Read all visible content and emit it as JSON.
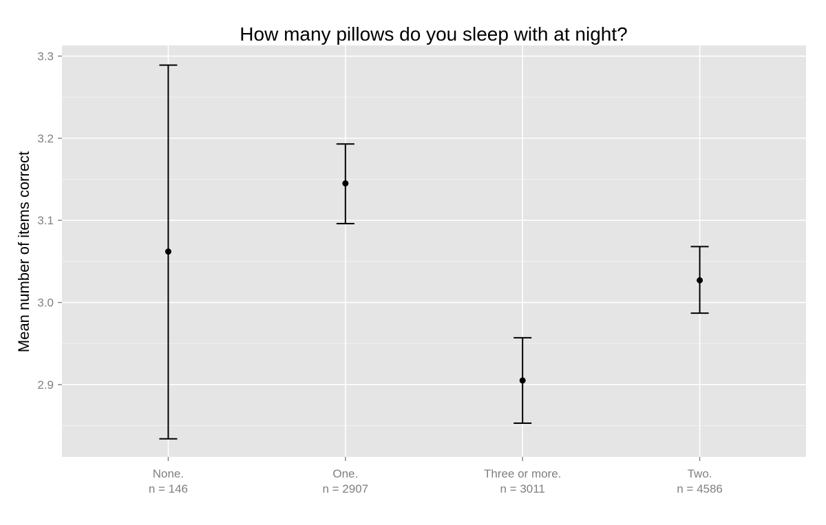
{
  "chart_data": {
    "type": "errorbar",
    "title": "How many pillows do you sleep with at night?",
    "xlabel": "",
    "ylabel": "Mean number of items correct",
    "ylim": [
      2.812,
      3.313
    ],
    "yticks": [
      2.9,
      3.0,
      3.1,
      3.2,
      3.3
    ],
    "ytick_labels": [
      "2.9",
      "3.0",
      "3.1",
      "3.2",
      "3.3"
    ],
    "grid": true,
    "categories": [
      {
        "label": "None.",
        "n_label": "n = 146",
        "mean": 3.062,
        "lower": 2.834,
        "upper": 3.289
      },
      {
        "label": "One.",
        "n_label": "n = 2907",
        "mean": 3.145,
        "lower": 3.096,
        "upper": 3.193
      },
      {
        "label": "Three or more.",
        "n_label": "n = 3011",
        "mean": 2.905,
        "lower": 2.853,
        "upper": 2.957
      },
      {
        "label": "Two.",
        "n_label": "n = 4586",
        "mean": 3.027,
        "lower": 2.987,
        "upper": 3.068
      }
    ],
    "colors": {
      "panel_background": "#e5e5e5",
      "grid_major": "#ffffff",
      "grid_minor": "#f2f2f2",
      "marks": "#000000",
      "tick_text": "#7f7f7f"
    }
  }
}
